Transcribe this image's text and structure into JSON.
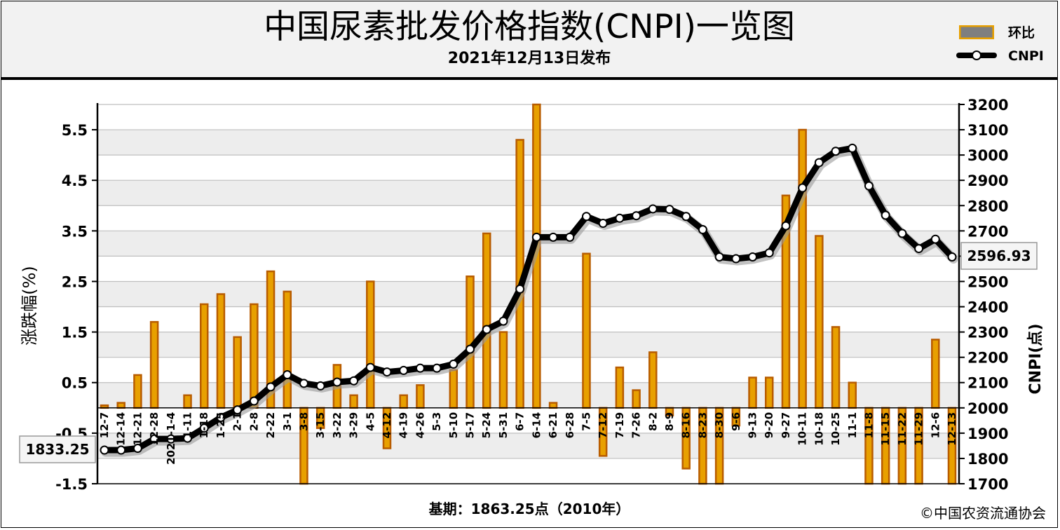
{
  "header": {
    "title": "中国尿素批发价格指数(CNPI)一览图",
    "subtitle": "2021年12月13日发布"
  },
  "legend": {
    "bar_label": "环比",
    "line_label": "CNPI"
  },
  "footer": {
    "base_period": "基期：1863.25点（2010年）",
    "copyright": "©中国农资流通协会"
  },
  "annotations": {
    "start_value": "1833.25",
    "end_value": "2596.93"
  },
  "colors": {
    "bar_fill": "#e8a000",
    "bar_stroke": "#b85c00",
    "line": "#000000",
    "grid": "#bfbfbf",
    "plot_bg_a": "#ededed",
    "plot_bg_b": "#ffffff"
  },
  "chart_data": {
    "type": "bar+line",
    "title": "中国尿素批发价格指数(CNPI)一览图",
    "subtitle": "2021年12月13日发布",
    "ylabel_left": "涨跌幅(%)",
    "ylabel_right": "CNPI(点)",
    "ylim_left": [
      -1.5,
      6.0
    ],
    "ylim_right": [
      1700,
      3200
    ],
    "yticks_left": [
      "-1.5",
      "-0.5",
      "0.5",
      "1.5",
      "2.5",
      "3.5",
      "4.5",
      "5.5"
    ],
    "yticks_right": [
      "1700",
      "1800",
      "1900",
      "2000",
      "2100",
      "2200",
      "2300",
      "2400",
      "2500",
      "2600",
      "2700",
      "2800",
      "2900",
      "3000",
      "3100",
      "3200"
    ],
    "categories": [
      "12-7",
      "12-14",
      "12-21",
      "12-28",
      "2021-1-4",
      "1-11",
      "1-18",
      "1-25",
      "2-1",
      "2-8",
      "2-22",
      "3-1",
      "3-8",
      "3-15",
      "3-22",
      "3-29",
      "4-5",
      "4-12",
      "4-19",
      "4-26",
      "5-3",
      "5-10",
      "5-17",
      "5-24",
      "5-31",
      "6-7",
      "6-14",
      "6-21",
      "6-28",
      "7-5",
      "7-12",
      "7-19",
      "7-26",
      "8-2",
      "8-9",
      "8-16",
      "8-23",
      "8-30",
      "9-6",
      "9-13",
      "9-20",
      "9-27",
      "10-11",
      "10-18",
      "10-25",
      "11-1",
      "11-8",
      "11-15",
      "11-22",
      "11-29",
      "12-6",
      "12-13"
    ],
    "series": [
      {
        "name": "环比",
        "type": "bar",
        "axis": "left",
        "values": [
          0.05,
          0.1,
          0.65,
          1.7,
          0.0,
          0.25,
          2.05,
          2.25,
          1.4,
          2.05,
          2.7,
          2.3,
          -1.5,
          -0.4,
          0.85,
          0.25,
          2.5,
          -0.8,
          0.25,
          0.45,
          0.0,
          0.75,
          2.6,
          3.45,
          1.5,
          5.3,
          6.0,
          0.1,
          0.0,
          3.05,
          -0.95,
          0.8,
          0.35,
          1.1,
          -0.15,
          -1.2,
          -1.5,
          -1.5,
          -0.35,
          0.6,
          0.6,
          4.2,
          5.5,
          3.4,
          1.6,
          0.5,
          -1.5,
          -1.5,
          -1.5,
          -1.5,
          1.35,
          -1.5
        ]
      },
      {
        "name": "CNPI",
        "type": "line",
        "axis": "right",
        "values": [
          1833,
          1833,
          1840,
          1877,
          1877,
          1880,
          1920,
          1962,
          1992,
          2027,
          2083,
          2131,
          2097,
          2087,
          2102,
          2107,
          2160,
          2142,
          2148,
          2157,
          2157,
          2173,
          2232,
          2310,
          2343,
          2470,
          2675,
          2675,
          2675,
          2757,
          2730,
          2750,
          2760,
          2787,
          2785,
          2757,
          2705,
          2597,
          2590,
          2597,
          2613,
          2720,
          2870,
          2970,
          3015,
          3027,
          2878,
          2762,
          2690,
          2630,
          2667,
          2597
        ]
      }
    ]
  }
}
